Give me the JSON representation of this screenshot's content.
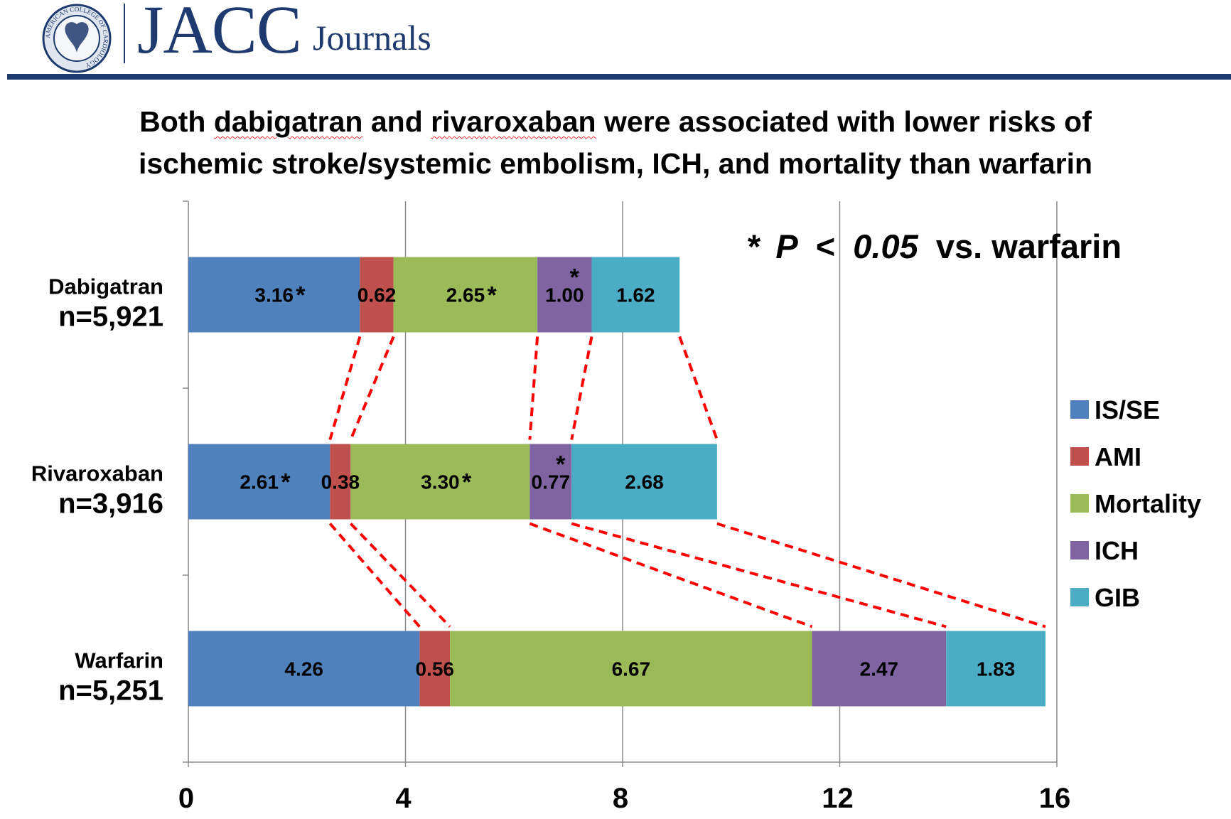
{
  "header": {
    "journal_name": "JACC",
    "journal_suffix": "Journals",
    "seal_text": "AMERICAN COLLEGE OF CARDIOLOGY"
  },
  "chart_data": {
    "type": "bar",
    "orientation": "horizontal",
    "stacked": true,
    "title_parts": [
      {
        "text": "Both ",
        "flag": false
      },
      {
        "text": "dabigatran",
        "flag": true
      },
      {
        "text": " and ",
        "flag": false
      },
      {
        "text": "rivaroxaban",
        "flag": true
      },
      {
        "text": " were associated with lower risks of",
        "flag": false
      }
    ],
    "title_line2": "ischemic stroke/systemic embolism, ICH, and mortality than warfarin",
    "annotation": {
      "star": "*",
      "p_letter": "P",
      "lt": "<",
      "p_value": "0.05",
      "suffix": "vs. warfarin"
    },
    "categories": [
      {
        "name": "Dabigatran",
        "n": "n=5,921"
      },
      {
        "name": "Rivaroxaban",
        "n": "n=3,916"
      },
      {
        "name": "Warfarin",
        "n": "n=5,251"
      }
    ],
    "series": [
      {
        "name": "IS/SE",
        "color": "#4f81bd",
        "values": [
          3.16,
          2.61,
          4.26
        ],
        "labels": [
          "3.16",
          "2.61",
          "4.26"
        ],
        "sig": [
          true,
          true,
          false
        ]
      },
      {
        "name": "AMI",
        "color": "#c0504d",
        "values": [
          0.62,
          0.38,
          0.56
        ],
        "labels": [
          "0.62",
          "0.38",
          "0.56"
        ],
        "sig": [
          false,
          false,
          false
        ]
      },
      {
        "name": "Mortality",
        "color": "#9bbb59",
        "values": [
          2.65,
          3.3,
          6.67
        ],
        "labels": [
          "2.65",
          "3.30",
          "6.67"
        ],
        "sig": [
          true,
          true,
          false
        ]
      },
      {
        "name": "ICH",
        "color": "#8064a2",
        "values": [
          1.0,
          0.77,
          2.47
        ],
        "labels": [
          "1.00",
          "0.77",
          "2.47"
        ],
        "sig": [
          true,
          true,
          false
        ]
      },
      {
        "name": "GIB",
        "color": "#4bacc6",
        "values": [
          1.62,
          2.68,
          1.83
        ],
        "labels": [
          "1.62",
          "2.68",
          "1.83"
        ],
        "sig": [
          false,
          false,
          false
        ]
      }
    ],
    "xlim": [
      0,
      16
    ],
    "xticks": [
      "0",
      "4",
      "8",
      "12",
      "16"
    ],
    "grid": true,
    "legend_position": "right",
    "connector_color": "#ff0000"
  }
}
